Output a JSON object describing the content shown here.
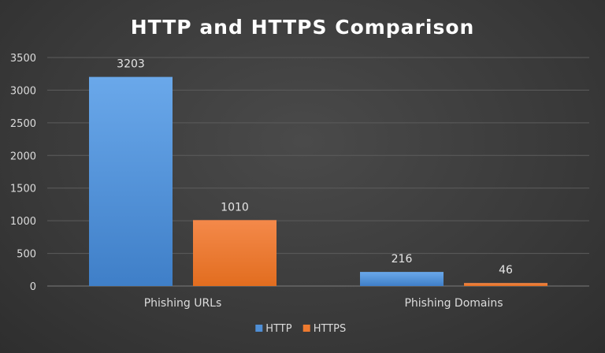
{
  "chart_data": {
    "type": "bar",
    "title": "HTTP and HTTPS Comparison",
    "xlabel": "",
    "ylabel": "",
    "categories": [
      "Phishing URLs",
      "Phishing Domains"
    ],
    "series": [
      {
        "name": "HTTP",
        "values": [
          3203,
          216
        ],
        "color": "#4f8fd6"
      },
      {
        "name": "HTTPS",
        "values": [
          1010,
          46
        ],
        "color": "#ee7a2f"
      }
    ],
    "ylim": [
      0,
      3500
    ],
    "yticks": [
      0,
      500,
      1000,
      1500,
      2000,
      2500,
      3000,
      3500
    ],
    "grid": true,
    "legend_position": "bottom"
  }
}
